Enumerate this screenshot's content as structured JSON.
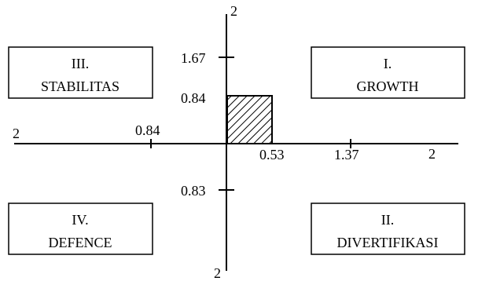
{
  "colors": {
    "line": "#000000",
    "background": "#ffffff"
  },
  "axes": {
    "top_end_label": "2",
    "bottom_end_label": "2",
    "left_end_label": "2",
    "right_end_label": "2",
    "y_ticks": [
      "1.67",
      "0.84",
      "0.83"
    ],
    "x_ticks": [
      "0.84",
      "0.53",
      "1.37"
    ]
  },
  "quadrants": {
    "q1": {
      "numeral": "I.",
      "name": "GROWTH"
    },
    "q2": {
      "numeral": "II.",
      "name": "DIVERTIFIKASI"
    },
    "q3": {
      "numeral": "III.",
      "name": "STABILITAS"
    },
    "q4": {
      "numeral": "IV.",
      "name": "DEFENCE"
    }
  },
  "position_area": {
    "fill": "hatched"
  }
}
